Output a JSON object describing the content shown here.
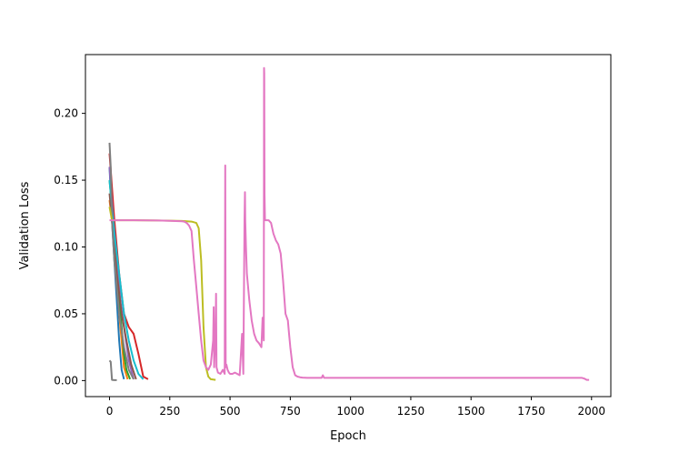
{
  "chart_data": {
    "type": "line",
    "title": "",
    "xlabel": "Epoch",
    "ylabel": "Validation Loss",
    "xlim": [
      -100,
      2080
    ],
    "ylim": [
      -0.012,
      0.244
    ],
    "xticks": [
      0,
      250,
      500,
      750,
      1000,
      1250,
      1500,
      1750,
      2000
    ],
    "xtick_labels": [
      "0",
      "250",
      "500",
      "750",
      "1000",
      "1250",
      "1500",
      "1750",
      "2000"
    ],
    "yticks": [
      0.0,
      0.05,
      0.1,
      0.15,
      0.2
    ],
    "ytick_labels": [
      "0.00",
      "0.05",
      "0.10",
      "0.15",
      "0.20"
    ],
    "grid": false,
    "legend": "none",
    "series": [
      {
        "color": "#1f77b4",
        "x": [
          0,
          10,
          20,
          30,
          40,
          50,
          60
        ],
        "y": [
          0.16,
          0.12,
          0.09,
          0.06,
          0.03,
          0.008,
          0.001
        ]
      },
      {
        "color": "#ff7f0e",
        "x": [
          0,
          10,
          20,
          30,
          40,
          50,
          60,
          75
        ],
        "y": [
          0.135,
          0.12,
          0.1,
          0.08,
          0.05,
          0.03,
          0.01,
          0.001
        ]
      },
      {
        "color": "#2ca02c",
        "x": [
          0,
          10,
          20,
          30,
          40,
          50,
          60,
          70,
          85
        ],
        "y": [
          0.15,
          0.13,
          0.1,
          0.08,
          0.06,
          0.04,
          0.02,
          0.008,
          0.001
        ]
      },
      {
        "color": "#d62728",
        "x": [
          0,
          20,
          40,
          60,
          80,
          100,
          120,
          140,
          160
        ],
        "y": [
          0.17,
          0.12,
          0.08,
          0.05,
          0.04,
          0.035,
          0.02,
          0.003,
          0.001
        ]
      },
      {
        "color": "#9467bd",
        "x": [
          0,
          15,
          30,
          45,
          60,
          80,
          100
        ],
        "y": [
          0.16,
          0.12,
          0.09,
          0.06,
          0.04,
          0.015,
          0.001
        ]
      },
      {
        "color": "#8c564b",
        "x": [
          0,
          15,
          30,
          50,
          70,
          90,
          110
        ],
        "y": [
          0.14,
          0.11,
          0.08,
          0.05,
          0.03,
          0.012,
          0.001
        ]
      },
      {
        "color": "#17becf",
        "x": [
          0,
          20,
          40,
          60,
          80,
          100,
          120,
          140
        ],
        "y": [
          0.15,
          0.11,
          0.08,
          0.05,
          0.03,
          0.015,
          0.005,
          0.001
        ]
      },
      {
        "color": "#7f7f7f",
        "x": [
          0,
          5,
          10,
          20,
          40,
          60,
          80,
          100
        ],
        "y": [
          0.178,
          0.16,
          0.12,
          0.09,
          0.05,
          0.025,
          0.008,
          0.001
        ]
      },
      {
        "color": "#7f7f7f",
        "x": [
          0,
          5,
          10,
          20,
          30
        ],
        "y": [
          0.015,
          0.014,
          0.0005,
          0.0003,
          0.0003
        ]
      },
      {
        "color": "#bcbd22",
        "x": [
          0,
          10,
          50,
          100,
          200,
          300,
          340,
          360,
          370,
          380,
          390,
          400,
          410,
          420,
          440
        ],
        "y": [
          0.13,
          0.12,
          0.12,
          0.12,
          0.1198,
          0.1195,
          0.119,
          0.118,
          0.114,
          0.09,
          0.04,
          0.01,
          0.003,
          0.001,
          0.0005
        ]
      },
      {
        "color": "#e377c2",
        "x": [
          0,
          10,
          50,
          100,
          200,
          250,
          300,
          310,
          320,
          330,
          340,
          350,
          360,
          370,
          380,
          390,
          400,
          410,
          420,
          430,
          432,
          434,
          440,
          442,
          444,
          450,
          460,
          470,
          478,
          480,
          482,
          485,
          490,
          495,
          500,
          510,
          520,
          530,
          540,
          550,
          555,
          560,
          562,
          563,
          566,
          570,
          580,
          590,
          600,
          610,
          620,
          630,
          635,
          640,
          641,
          642,
          643,
          645,
          646,
          650,
          660,
          670,
          680,
          690,
          700,
          710,
          720,
          730,
          740,
          745,
          750,
          760,
          770,
          780,
          790,
          800,
          820,
          850,
          880,
          885,
          890,
          900,
          950,
          1000,
          1100,
          1200,
          1300,
          1400,
          1500,
          1600,
          1700,
          1800,
          1900,
          1960,
          1970,
          1980,
          1990
        ],
        "y": [
          0.12,
          0.12,
          0.12,
          0.12,
          0.1198,
          0.1196,
          0.1192,
          0.119,
          0.118,
          0.116,
          0.112,
          0.09,
          0.07,
          0.05,
          0.03,
          0.015,
          0.01,
          0.008,
          0.012,
          0.03,
          0.055,
          0.01,
          0.04,
          0.065,
          0.01,
          0.006,
          0.005,
          0.008,
          0.005,
          0.161,
          0.01,
          0.012,
          0.008,
          0.006,
          0.005,
          0.005,
          0.006,
          0.005,
          0.004,
          0.035,
          0.005,
          0.12,
          0.141,
          0.12,
          0.1,
          0.08,
          0.06,
          0.045,
          0.035,
          0.03,
          0.028,
          0.025,
          0.047,
          0.03,
          0.234,
          0.23,
          0.14,
          0.121,
          0.12,
          0.12,
          0.12,
          0.118,
          0.11,
          0.105,
          0.102,
          0.095,
          0.075,
          0.05,
          0.045,
          0.035,
          0.025,
          0.01,
          0.004,
          0.003,
          0.0025,
          0.0022,
          0.002,
          0.002,
          0.002,
          0.004,
          0.002,
          0.002,
          0.002,
          0.002,
          0.002,
          0.002,
          0.002,
          0.002,
          0.002,
          0.002,
          0.002,
          0.002,
          0.002,
          0.002,
          0.0015,
          0.0005,
          0.0005
        ]
      }
    ]
  }
}
